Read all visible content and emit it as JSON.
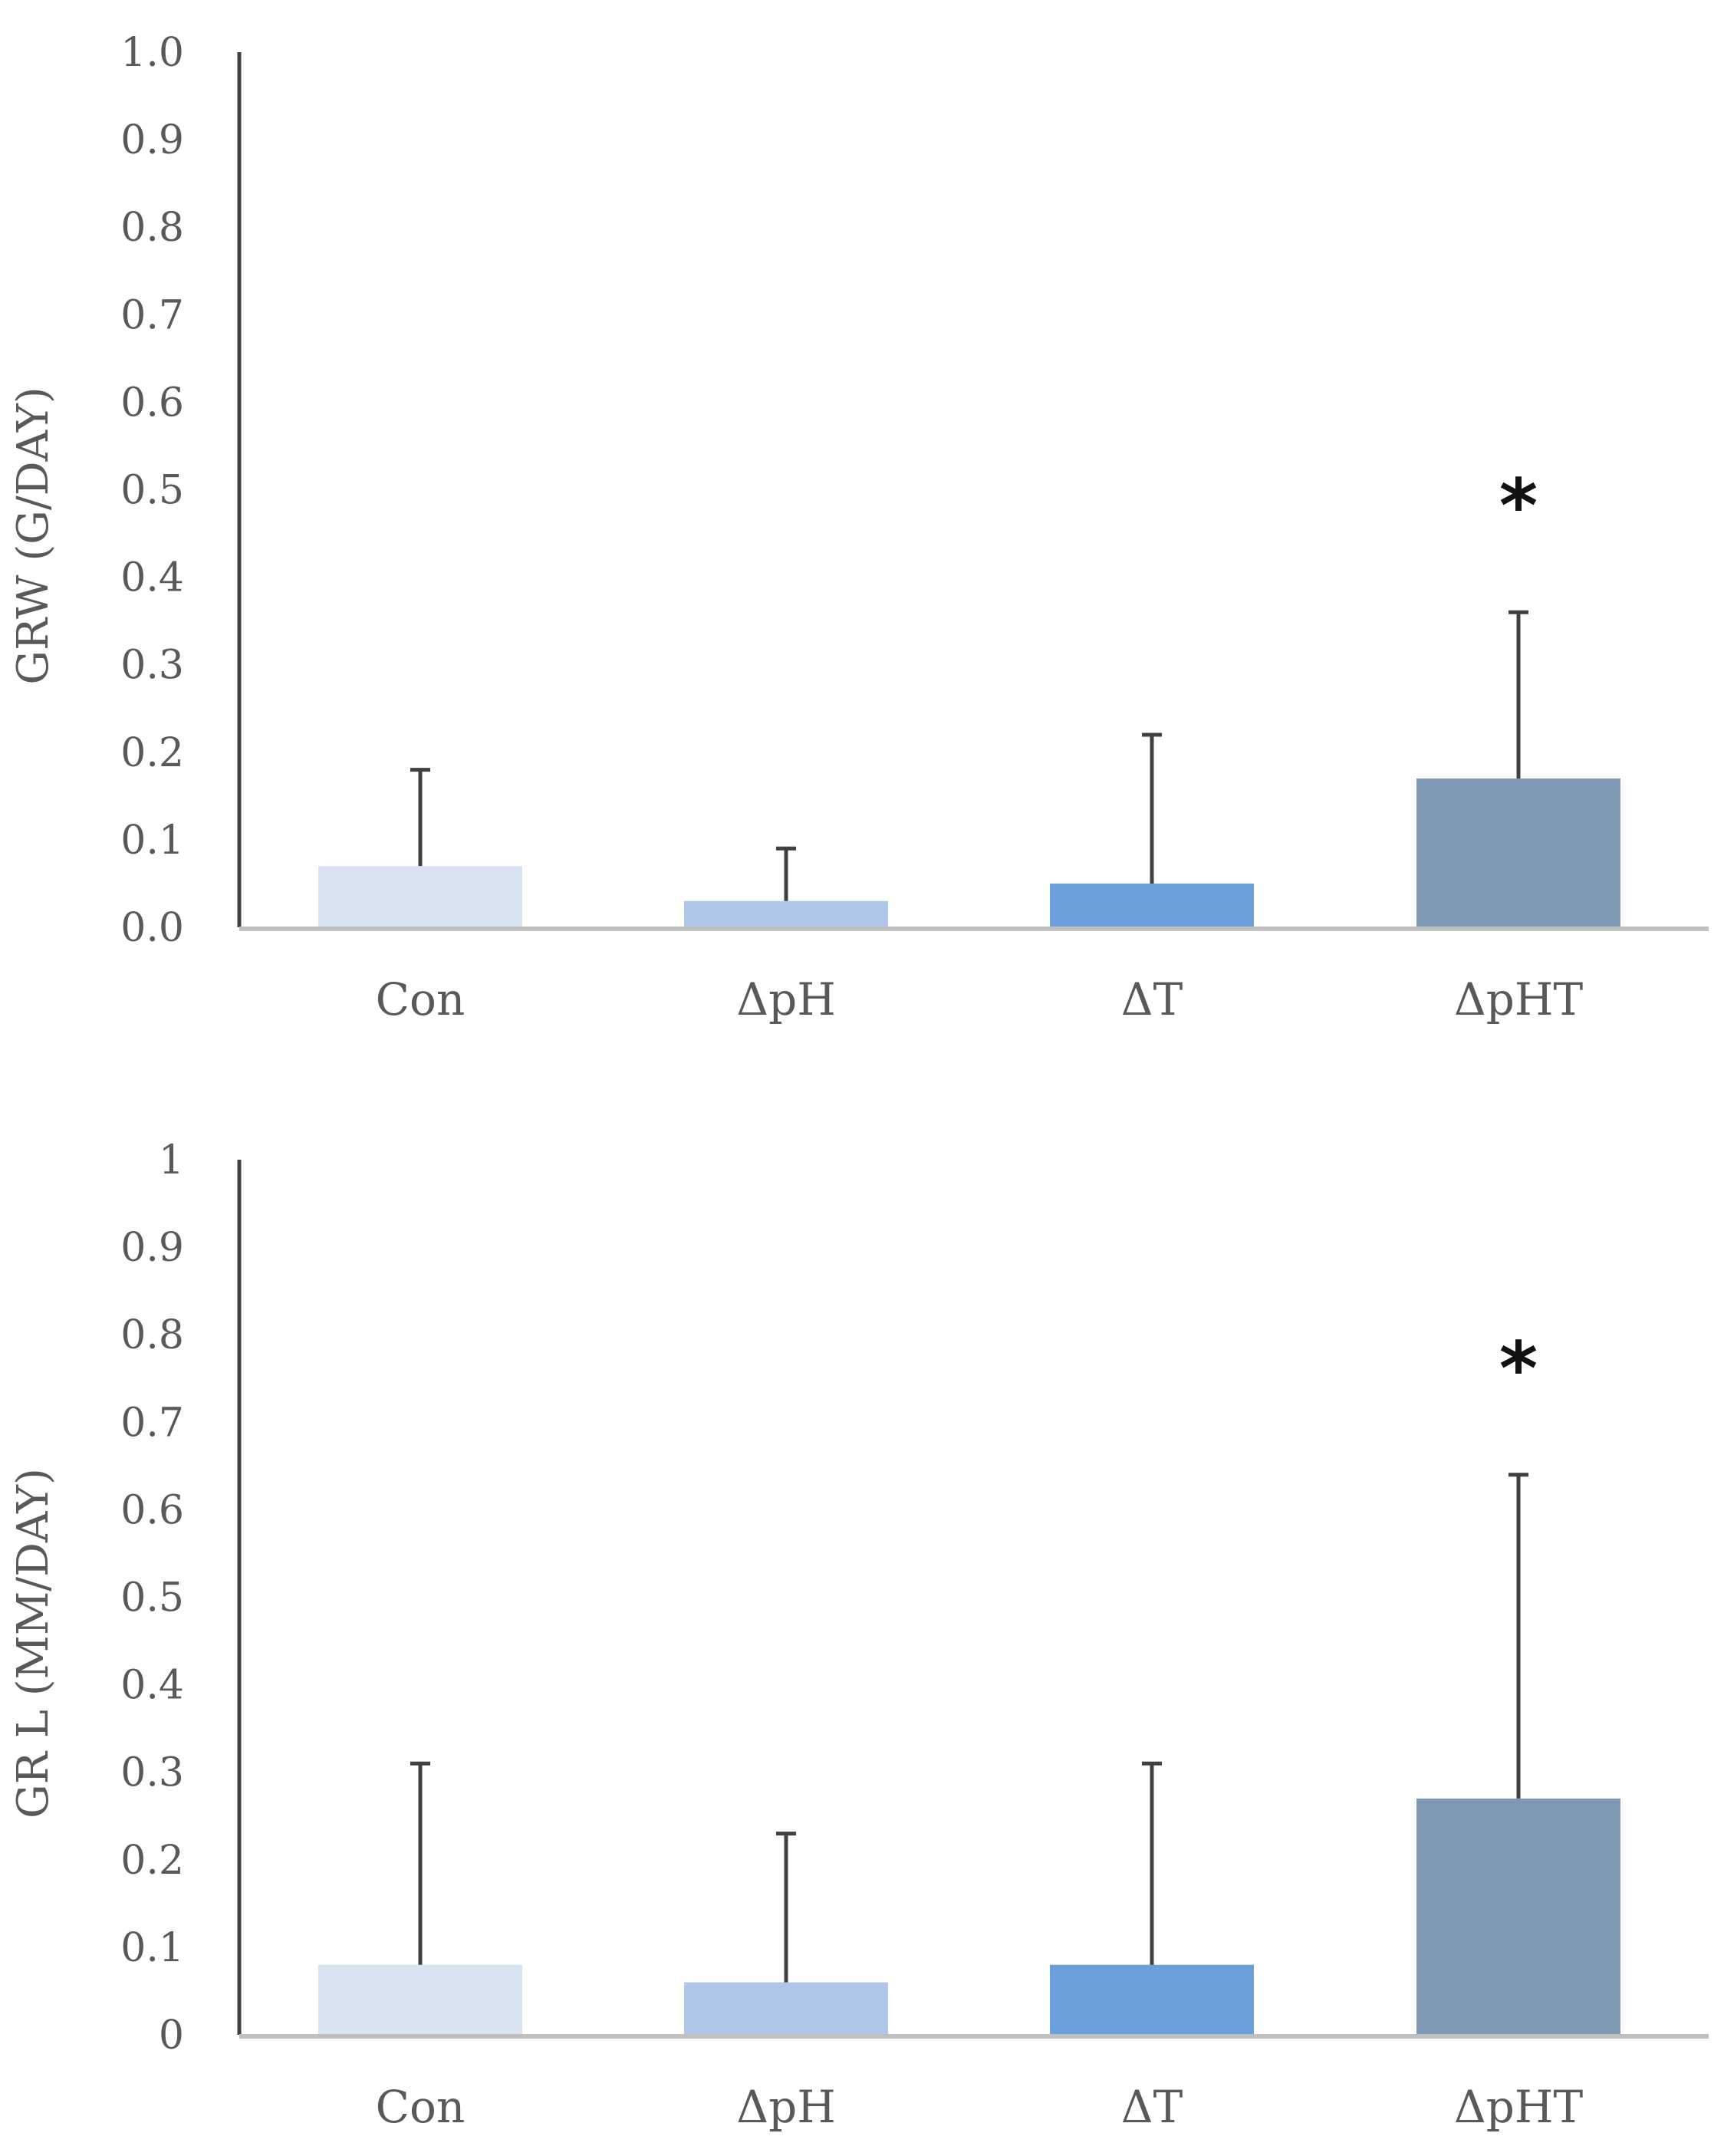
{
  "chart_data": [
    {
      "type": "bar",
      "ylabel": "GRW (G/DAY)",
      "ylim": [
        0,
        1.0
      ],
      "yticks": [
        "0.0",
        "0.1",
        "0.2",
        "0.3",
        "0.4",
        "0.5",
        "0.6",
        "0.7",
        "0.8",
        "0.9",
        "1.0"
      ],
      "categories": [
        "Con",
        "ΔpH",
        "ΔT",
        "ΔpHT"
      ],
      "values": [
        0.07,
        0.03,
        0.05,
        0.17
      ],
      "error_upper": [
        0.18,
        0.09,
        0.22,
        0.36
      ],
      "colors": [
        "#d9e4f2",
        "#aec7e8",
        "#6a9fdc",
        "#7e99b3"
      ],
      "significance": [
        "",
        "",
        "",
        "*"
      ]
    },
    {
      "type": "bar",
      "ylabel": "GR L (MM/DAY)",
      "ylim": [
        0,
        1
      ],
      "yticks": [
        "0",
        "0.1",
        "0.2",
        "0.3",
        "0.4",
        "0.5",
        "0.6",
        "0.7",
        "0.8",
        "0.9",
        "1"
      ],
      "categories": [
        "Con",
        "ΔpH",
        "ΔT",
        "ΔpHT"
      ],
      "values": [
        0.08,
        0.06,
        0.08,
        0.27
      ],
      "error_upper": [
        0.31,
        0.23,
        0.31,
        0.64
      ],
      "colors": [
        "#d9e4f2",
        "#aec7e8",
        "#6a9fdc",
        "#7e99b3"
      ],
      "significance": [
        "",
        "",
        "",
        "*"
      ]
    }
  ]
}
